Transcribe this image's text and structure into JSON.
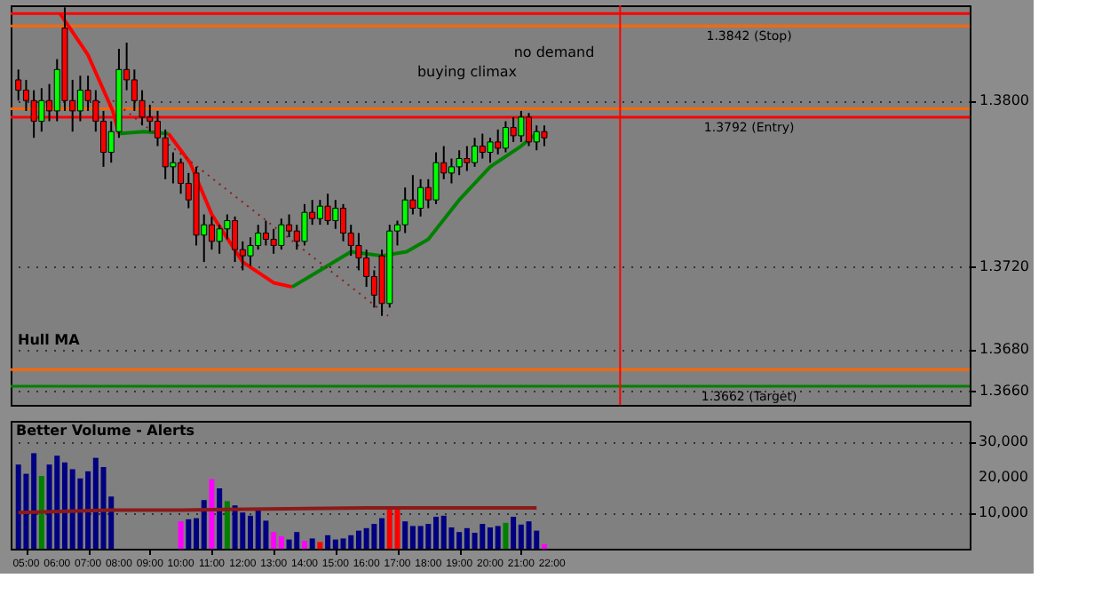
{
  "chart_data": [
    {
      "type": "candlestick",
      "annotations": [
        "Hull MA",
        "buying climax",
        "no demand"
      ],
      "x": [
        4.75,
        5.0,
        5.25,
        5.5,
        5.75,
        6.0,
        6.25,
        6.5,
        6.75,
        7.0,
        7.25,
        7.5,
        7.75,
        8.0,
        8.25,
        8.5,
        8.75,
        9.0,
        9.25,
        9.5,
        9.75,
        10.0,
        10.25,
        10.5,
        10.75,
        11.0,
        11.25,
        11.5,
        11.75,
        12.0,
        12.25,
        12.5,
        12.75,
        13.0,
        13.25,
        13.5,
        13.75,
        14.0,
        14.25,
        14.5,
        14.75,
        15.0,
        15.25,
        15.5,
        15.75,
        16.0,
        16.25,
        16.5,
        16.75,
        17.0,
        17.25,
        17.5,
        17.75,
        18.0,
        18.25,
        18.5,
        18.75,
        19.0,
        19.25,
        19.5,
        19.75,
        20.0,
        20.25,
        20.5,
        20.75,
        21.0,
        21.25,
        21.5,
        21.75
      ],
      "ohlc": [
        [
          1.381,
          1.3815,
          1.38,
          1.3805
        ],
        [
          1.3805,
          1.381,
          1.3795,
          1.38
        ],
        [
          1.38,
          1.3805,
          1.3782,
          1.379
        ],
        [
          1.379,
          1.3806,
          1.3785,
          1.38
        ],
        [
          1.38,
          1.3808,
          1.379,
          1.3795
        ],
        [
          1.3795,
          1.382,
          1.379,
          1.3815
        ],
        [
          1.3835,
          1.3845,
          1.3795,
          1.38
        ],
        [
          1.38,
          1.381,
          1.3785,
          1.3795
        ],
        [
          1.3795,
          1.3812,
          1.379,
          1.3805
        ],
        [
          1.3805,
          1.3812,
          1.3795,
          1.38
        ],
        [
          1.38,
          1.3805,
          1.3785,
          1.379
        ],
        [
          1.379,
          1.3795,
          1.3768,
          1.3775
        ],
        [
          1.3775,
          1.379,
          1.377,
          1.3785
        ],
        [
          1.3785,
          1.3825,
          1.3782,
          1.3815
        ],
        [
          1.3815,
          1.3828,
          1.3805,
          1.381
        ],
        [
          1.381,
          1.3815,
          1.3795,
          1.38
        ],
        [
          1.38,
          1.3805,
          1.3788,
          1.3792
        ],
        [
          1.3792,
          1.3798,
          1.3785,
          1.379
        ],
        [
          1.379,
          1.3795,
          1.3778,
          1.3782
        ],
        [
          1.3782,
          1.3786,
          1.3762,
          1.3768
        ],
        [
          1.3768,
          1.3775,
          1.376,
          1.377
        ],
        [
          1.377,
          1.3772,
          1.3755,
          1.376
        ],
        [
          1.376,
          1.3765,
          1.3748,
          1.3752
        ],
        [
          1.3765,
          1.3768,
          1.373,
          1.3735
        ],
        [
          1.3735,
          1.3745,
          1.3722,
          1.374
        ],
        [
          1.374,
          1.3744,
          1.3728,
          1.3732
        ],
        [
          1.3732,
          1.374,
          1.3726,
          1.3738
        ],
        [
          1.3738,
          1.3745,
          1.3733,
          1.3742
        ],
        [
          1.3742,
          1.3744,
          1.3722,
          1.3728
        ],
        [
          1.3728,
          1.3732,
          1.3718,
          1.3725
        ],
        [
          1.3725,
          1.3734,
          1.372,
          1.373
        ],
        [
          1.373,
          1.374,
          1.3728,
          1.3736
        ],
        [
          1.3736,
          1.3742,
          1.373,
          1.3733
        ],
        [
          1.3733,
          1.3738,
          1.3726,
          1.373
        ],
        [
          1.373,
          1.3743,
          1.3728,
          1.374
        ],
        [
          1.374,
          1.3745,
          1.3734,
          1.3737
        ],
        [
          1.3737,
          1.374,
          1.3728,
          1.3732
        ],
        [
          1.3732,
          1.375,
          1.373,
          1.3746
        ],
        [
          1.3746,
          1.3752,
          1.374,
          1.3743
        ],
        [
          1.3743,
          1.3752,
          1.374,
          1.3749
        ],
        [
          1.3749,
          1.3755,
          1.374,
          1.3742
        ],
        [
          1.3742,
          1.3752,
          1.3738,
          1.3748
        ],
        [
          1.3748,
          1.375,
          1.3732,
          1.3736
        ],
        [
          1.3736,
          1.374,
          1.3725,
          1.373
        ],
        [
          1.373,
          1.3736,
          1.3718,
          1.3724
        ],
        [
          1.3724,
          1.3728,
          1.371,
          1.3715
        ],
        [
          1.3715,
          1.3718,
          1.37,
          1.3706
        ],
        [
          1.3725,
          1.3728,
          1.3696,
          1.3702
        ],
        [
          1.3702,
          1.374,
          1.37,
          1.3737
        ],
        [
          1.3737,
          1.3742,
          1.373,
          1.374
        ],
        [
          1.374,
          1.3758,
          1.3736,
          1.3752
        ],
        [
          1.3752,
          1.3764,
          1.3745,
          1.3748
        ],
        [
          1.3748,
          1.3762,
          1.3744,
          1.3758
        ],
        [
          1.3758,
          1.3762,
          1.3748,
          1.3752
        ],
        [
          1.3752,
          1.3775,
          1.375,
          1.377
        ],
        [
          1.377,
          1.3778,
          1.3762,
          1.3765
        ],
        [
          1.3765,
          1.3772,
          1.376,
          1.3768
        ],
        [
          1.3768,
          1.3776,
          1.3764,
          1.3772
        ],
        [
          1.3772,
          1.3778,
          1.3766,
          1.377
        ],
        [
          1.377,
          1.3782,
          1.3768,
          1.3778
        ],
        [
          1.3778,
          1.3784,
          1.3772,
          1.3775
        ],
        [
          1.3775,
          1.3782,
          1.377,
          1.378
        ],
        [
          1.378,
          1.3786,
          1.3774,
          1.3777
        ],
        [
          1.3777,
          1.379,
          1.3775,
          1.3787
        ],
        [
          1.3787,
          1.3792,
          1.378,
          1.3783
        ],
        [
          1.3783,
          1.3795,
          1.378,
          1.3792
        ],
        [
          1.3792,
          1.3794,
          1.3778,
          1.378
        ],
        [
          1.378,
          1.3788,
          1.3776,
          1.3785
        ],
        [
          1.3785,
          1.3788,
          1.3778,
          1.3782
        ]
      ],
      "colors": [
        "#ff0000",
        "#ff0000",
        "#ff0000",
        "#00ff00",
        "#ff0000",
        "#00ff00",
        "#ff0000",
        "#ff0000",
        "#00ff00",
        "#ff0000",
        "#ff0000",
        "#ff0000",
        "#00ff00",
        "#00ff00",
        "#ff0000",
        "#ff0000",
        "#ff0000",
        "#ff0000",
        "#ff0000",
        "#ff0000",
        "#00ff00",
        "#ff0000",
        "#ff0000",
        "#ff0000",
        "#00ff00",
        "#ff0000",
        "#00ff00",
        "#00ff00",
        "#ff0000",
        "#ff0000",
        "#00ff00",
        "#00ff00",
        "#ff0000",
        "#ff0000",
        "#00ff00",
        "#ff0000",
        "#ff0000",
        "#00ff00",
        "#ff0000",
        "#00ff00",
        "#ff0000",
        "#00ff00",
        "#ff0000",
        "#ff0000",
        "#ff0000",
        "#ff0000",
        "#ff0000",
        "#ff0000",
        "#00ff00",
        "#00ff00",
        "#00ff00",
        "#ff0000",
        "#00ff00",
        "#ff0000",
        "#00ff00",
        "#ff0000",
        "#00ff00",
        "#00ff00",
        "#ff0000",
        "#00ff00",
        "#ff0000",
        "#00ff00",
        "#ff0000",
        "#00ff00",
        "#ff0000",
        "#00ff00",
        "#ff0000",
        "#00ff00",
        "#ff0000"
      ],
      "series": [
        {
          "type": "line",
          "color": "#ff0000",
          "x": [
            6.1,
            7.0,
            7.8,
            8.0
          ],
          "values": [
            1.3842,
            1.3822,
            1.3795,
            1.3784
          ]
        },
        {
          "type": "line",
          "color": "#008000",
          "x": [
            8.0,
            8.8,
            9.6
          ],
          "values": [
            1.3784,
            1.3785,
            1.3784
          ]
        },
        {
          "type": "line",
          "color": "#ff0000",
          "x": [
            9.6,
            10.3,
            11.0,
            12.0,
            13.0,
            13.6
          ],
          "values": [
            1.3784,
            1.377,
            1.3745,
            1.3722,
            1.3712,
            1.371
          ]
        },
        {
          "type": "line",
          "color": "#008000",
          "x": [
            13.6,
            14.5,
            15.5,
            16.5,
            17.3,
            18.0,
            19.0,
            20.0,
            21.0,
            21.5
          ],
          "values": [
            1.371,
            1.3718,
            1.3727,
            1.3725,
            1.3727,
            1.3733,
            1.3752,
            1.3768,
            1.3778,
            1.3784
          ]
        },
        {
          "type": "line",
          "color": "#8b1a1a",
          "line_style": "dotted",
          "x": [
            7.8,
            16.7
          ],
          "values": [
            1.38,
            1.3696
          ]
        }
      ],
      "ref_lines": [
        {
          "axis": "y",
          "value": 1.3842,
          "label": "1.3842 (Stop)",
          "color": "#ff0000"
        },
        {
          "axis": "y",
          "value": 1.3836,
          "color": "#ff6600"
        },
        {
          "axis": "y",
          "value": 1.3796,
          "color": "#ff6600"
        },
        {
          "axis": "y",
          "value": 1.3792,
          "label": "1.3792 (Entry)",
          "color": "#ff0000"
        },
        {
          "axis": "y",
          "value": 1.367,
          "color": "#ff6600"
        },
        {
          "axis": "y",
          "value": 1.3662,
          "label": "1.3662 (Target)",
          "color": "#008000"
        },
        {
          "axis": "x",
          "value": 24.2,
          "color": "#ff0000"
        }
      ],
      "xlim": [
        4.5,
        35.5
      ],
      "ylim": [
        1.3653,
        1.3846
      ],
      "yticks": [
        {
          "value": 1.366,
          "label": "1.3660"
        },
        {
          "value": 1.368,
          "label": "1.3680"
        },
        {
          "value": 1.372,
          "label": "1.3720"
        },
        {
          "value": 1.38,
          "label": "1.3800"
        }
      ],
      "grid": "y",
      "tick_labels": "y"
    },
    {
      "type": "bar",
      "title": "Better Volume - Alerts",
      "x": [
        4.75,
        5.0,
        5.25,
        5.5,
        5.75,
        6.0,
        6.25,
        6.5,
        6.75,
        7.0,
        7.25,
        7.5,
        7.75,
        8.0,
        8.25,
        8.5,
        8.75,
        9.0,
        9.25,
        9.5,
        9.75,
        10.0,
        10.25,
        10.5,
        10.75,
        11.0,
        11.25,
        11.5,
        11.75,
        12.0,
        12.25,
        12.5,
        12.75,
        13.0,
        13.25,
        13.5,
        13.75,
        14.0,
        14.25,
        14.5,
        14.75,
        15.0,
        15.25,
        15.5,
        15.75,
        16.0,
        16.25,
        16.5,
        16.75,
        17.0,
        17.25,
        17.5,
        17.75,
        18.0,
        18.25,
        18.5,
        18.75,
        19.0,
        19.25,
        19.5,
        19.75,
        20.0,
        20.25,
        20.5,
        20.75,
        21.0,
        21.25,
        21.5,
        21.75
      ],
      "values": [
        23700,
        21100,
        26900,
        20500,
        23700,
        26200,
        24300,
        22400,
        19800,
        21800,
        25600,
        23000,
        14700,
        null,
        null,
        null,
        null,
        null,
        null,
        null,
        null,
        7700,
        8300,
        8600,
        13700,
        19600,
        17000,
        13400,
        12200,
        10200,
        9300,
        10900,
        7900,
        4700,
        3500,
        2600,
        4700,
        2200,
        2900,
        1900,
        3800,
        2600,
        2900,
        3800,
        5100,
        5800,
        7000,
        8600,
        11500,
        11500,
        7700,
        6400,
        6400,
        7000,
        9000,
        9300,
        6000,
        4700,
        5800,
        4500,
        7000,
        6000,
        6400,
        7300,
        9000,
        6800,
        7700,
        5100,
        1300
      ],
      "colors": [
        "#000080",
        "#000080",
        "#000080",
        "#008000",
        "#000080",
        "#000080",
        "#000080",
        "#000080",
        "#000080",
        "#000080",
        "#000080",
        "#000080",
        "#000080",
        "#000080",
        "#000080",
        "#000080",
        "#000080",
        "#000080",
        "#000080",
        "#000080",
        "#000080",
        "#ff00ff",
        "#000080",
        "#000080",
        "#000080",
        "#ff00ff",
        "#000080",
        "#008000",
        "#000080",
        "#000080",
        "#000080",
        "#000080",
        "#000080",
        "#ff00ff",
        "#ff00ff",
        "#000080",
        "#000080",
        "#ff00ff",
        "#000080",
        "#ff0000",
        "#000080",
        "#000080",
        "#000080",
        "#000080",
        "#000080",
        "#000080",
        "#000080",
        "#000080",
        "#ff0000",
        "#ff0000",
        "#000080",
        "#000080",
        "#000080",
        "#000080",
        "#000080",
        "#000080",
        "#000080",
        "#000080",
        "#000080",
        "#000080",
        "#000080",
        "#000080",
        "#000080",
        "#008000",
        "#000080",
        "#000080",
        "#000080",
        "#000080",
        "#ff00ff"
      ],
      "series": [
        {
          "type": "line",
          "color": "#8b1a1a",
          "x": [
            4.75,
            7.75,
            10.0,
            16.0,
            21.5
          ],
          "values": [
            10200,
            10900,
            10900,
            11500,
            11500
          ]
        }
      ],
      "xlim": [
        4.5,
        35.5
      ],
      "ylim": [
        0,
        36000
      ],
      "xticks": [
        {
          "value": 5,
          "label": "05:00"
        },
        {
          "value": 6,
          "label": "06:00"
        },
        {
          "value": 7,
          "label": "07:00"
        },
        {
          "value": 8,
          "label": "08:00"
        },
        {
          "value": 9,
          "label": "09:00"
        },
        {
          "value": 10,
          "label": "10:00"
        },
        {
          "value": 11,
          "label": "11:00"
        },
        {
          "value": 12,
          "label": "12:00"
        },
        {
          "value": 13,
          "label": "13:00"
        },
        {
          "value": 14,
          "label": "14:00"
        },
        {
          "value": 15,
          "label": "15:00"
        },
        {
          "value": 16,
          "label": "16:00"
        },
        {
          "value": 17,
          "label": "17:00"
        },
        {
          "value": 18,
          "label": "18:00"
        },
        {
          "value": 19,
          "label": "19:00"
        },
        {
          "value": 20,
          "label": "20:00"
        },
        {
          "value": 21,
          "label": "21:00"
        },
        {
          "value": 22,
          "label": "22:00"
        }
      ],
      "yticks": [
        {
          "value": 10000,
          "label": "10,000"
        },
        {
          "value": 20000,
          "label": "20,000"
        },
        {
          "value": 30000,
          "label": "30,000"
        }
      ],
      "grid": "y"
    }
  ]
}
